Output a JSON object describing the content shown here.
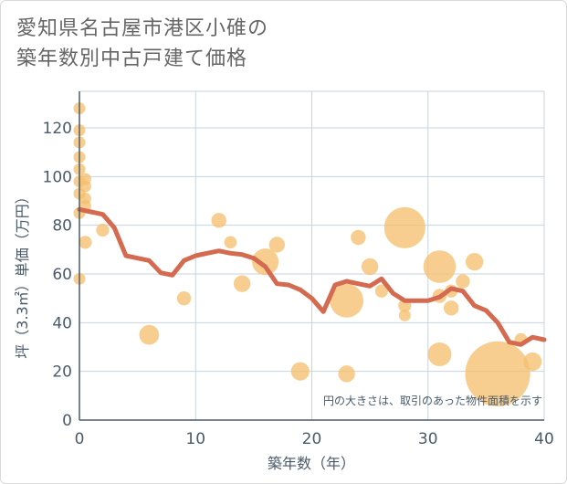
{
  "chart_data": {
    "type": "scatter",
    "title_lines": [
      "愛知県名古屋市港区小碓の",
      "築年数別中古戸建て価格"
    ],
    "xlabel": "築年数（年）",
    "ylabel": "坪（3.3㎡）単価（万円）",
    "xlim": [
      0,
      40
    ],
    "ylim": [
      0,
      135
    ],
    "xticks": [
      0,
      10,
      20,
      30,
      40
    ],
    "yticks": [
      0,
      20,
      40,
      60,
      80,
      100,
      120
    ],
    "annotation": "円の大きさは、取引のあった物件面積を示す",
    "colors": {
      "bubble": "#f5c06f",
      "line": "#d46a4f",
      "axis": "#4a5a6a",
      "grid": "#c8d3de"
    },
    "bubbles": [
      {
        "x": 0,
        "y": 128,
        "size": 1
      },
      {
        "x": 0,
        "y": 119,
        "size": 1
      },
      {
        "x": 0,
        "y": 114,
        "size": 1
      },
      {
        "x": 0,
        "y": 108,
        "size": 1
      },
      {
        "x": 0,
        "y": 103,
        "size": 1
      },
      {
        "x": 0,
        "y": 98,
        "size": 1
      },
      {
        "x": 0,
        "y": 93,
        "size": 1
      },
      {
        "x": 0,
        "y": 85,
        "size": 1
      },
      {
        "x": 0,
        "y": 58,
        "size": 1
      },
      {
        "x": 0.5,
        "y": 99,
        "size": 1
      },
      {
        "x": 0.5,
        "y": 96,
        "size": 1
      },
      {
        "x": 0.5,
        "y": 91,
        "size": 1
      },
      {
        "x": 0.5,
        "y": 88,
        "size": 1
      },
      {
        "x": 0.5,
        "y": 73,
        "size": 1.2
      },
      {
        "x": 2,
        "y": 78,
        "size": 1.2
      },
      {
        "x": 6,
        "y": 35,
        "size": 2.8
      },
      {
        "x": 9,
        "y": 50,
        "size": 1.4
      },
      {
        "x": 12,
        "y": 82,
        "size": 1.6
      },
      {
        "x": 13,
        "y": 73,
        "size": 1.1
      },
      {
        "x": 14,
        "y": 56,
        "size": 2
      },
      {
        "x": 16,
        "y": 65,
        "size": 5
      },
      {
        "x": 17,
        "y": 72,
        "size": 1.8
      },
      {
        "x": 19,
        "y": 20,
        "size": 2.4
      },
      {
        "x": 23,
        "y": 49,
        "size": 8
      },
      {
        "x": 23,
        "y": 19,
        "size": 2
      },
      {
        "x": 24,
        "y": 75,
        "size": 1.6
      },
      {
        "x": 25,
        "y": 63,
        "size": 2
      },
      {
        "x": 26,
        "y": 53,
        "size": 1.2
      },
      {
        "x": 28,
        "y": 79,
        "size": 12
      },
      {
        "x": 28,
        "y": 47,
        "size": 1.2
      },
      {
        "x": 28,
        "y": 43,
        "size": 1
      },
      {
        "x": 31,
        "y": 63,
        "size": 7.5
      },
      {
        "x": 31,
        "y": 51,
        "size": 1.4
      },
      {
        "x": 31,
        "y": 27,
        "size": 4
      },
      {
        "x": 32,
        "y": 53,
        "size": 1.2
      },
      {
        "x": 32,
        "y": 46,
        "size": 1.6
      },
      {
        "x": 33,
        "y": 57,
        "size": 1.4
      },
      {
        "x": 34,
        "y": 65,
        "size": 2.2
      },
      {
        "x": 36,
        "y": 19,
        "size": 30
      },
      {
        "x": 38,
        "y": 33,
        "size": 1.2
      },
      {
        "x": 39,
        "y": 24,
        "size": 2.4
      }
    ],
    "trend": {
      "x": [
        0,
        1,
        2,
        3,
        4,
        5,
        6,
        7,
        8,
        9,
        10,
        11,
        12,
        13,
        14,
        15,
        16,
        17,
        18,
        19,
        20,
        21,
        22,
        23,
        24,
        25,
        26,
        27,
        28,
        29,
        30,
        31,
        32,
        33,
        34,
        35,
        36,
        37,
        38,
        39,
        40
      ],
      "y": [
        86.5,
        85.5,
        84.5,
        79,
        67.5,
        66.5,
        65.5,
        60.5,
        59.5,
        65.5,
        67.5,
        68.5,
        69.5,
        68.5,
        68,
        66.5,
        63,
        56,
        55.5,
        53.5,
        50,
        44.5,
        55.5,
        57,
        56,
        55,
        58,
        52,
        49,
        49,
        49,
        50.5,
        54,
        53,
        47,
        45,
        40,
        32,
        31,
        34,
        33
      ]
    }
  }
}
